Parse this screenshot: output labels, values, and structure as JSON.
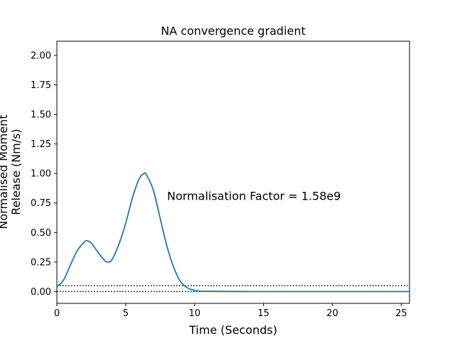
{
  "chart_data": {
    "type": "line",
    "title": "NA convergence gradient",
    "xlabel": "Time (Seconds)",
    "ylabel_lines": [
      "Normalised Moment",
      "Release (Nm/s)"
    ],
    "xlim": [
      0,
      25.6
    ],
    "ylim": [
      -0.1,
      2.12
    ],
    "xticks": [
      0,
      5,
      10,
      15,
      20,
      25
    ],
    "xtick_labels": [
      "0",
      "5",
      "10",
      "15",
      "20",
      "25"
    ],
    "yticks": [
      0.0,
      0.25,
      0.5,
      0.75,
      1.0,
      1.25,
      1.5,
      1.75,
      2.0
    ],
    "ytick_labels": [
      "0.00",
      "0.25",
      "0.50",
      "0.75",
      "1.00",
      "1.25",
      "1.50",
      "1.75",
      "2.00"
    ],
    "grid": false,
    "annotation": {
      "text": "Normalisation Factor = 1.58e9",
      "x": 8.0,
      "y": 0.81
    },
    "reference_lines": [
      {
        "y": 0.05,
        "style": "dotted",
        "color": "#000000"
      },
      {
        "y": 0.0,
        "style": "dotted",
        "color": "#000000"
      }
    ],
    "series": [
      {
        "color": "#1f77b4",
        "x": [
          0,
          0.5,
          1.0,
          1.5,
          2.0,
          2.2,
          2.5,
          3.0,
          3.5,
          3.75,
          4.0,
          4.5,
          5.0,
          5.5,
          6.0,
          6.35,
          6.5,
          7.0,
          7.5,
          8.0,
          8.5,
          9.0,
          9.5,
          10.0,
          10.5,
          11.0,
          12.0,
          14.0,
          16.0,
          18.0,
          20.0,
          22.0,
          24.0,
          25.6
        ],
        "y": [
          0.04,
          0.1,
          0.23,
          0.35,
          0.42,
          0.43,
          0.41,
          0.33,
          0.26,
          0.25,
          0.27,
          0.4,
          0.58,
          0.8,
          0.96,
          1.0,
          0.99,
          0.86,
          0.62,
          0.38,
          0.2,
          0.08,
          0.03,
          0.01,
          0.003,
          0.002,
          0.001,
          0.0,
          0.0,
          0.0,
          0.0,
          0.0,
          0.0,
          0.0
        ]
      }
    ]
  }
}
